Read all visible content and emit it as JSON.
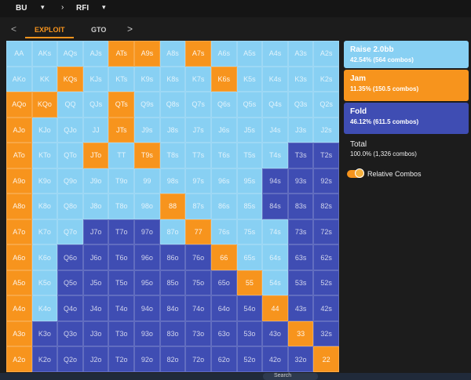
{
  "nav": {
    "position": "BU",
    "spot": "RFI"
  },
  "tabs": {
    "prev": "<",
    "active": "EXPLOIT",
    "other": "GTO",
    "next": ">"
  },
  "grid": {
    "rows": [
      [
        "AA",
        "AKs",
        "AQs",
        "AJs",
        "ATs",
        "A9s",
        "A8s",
        "A7s",
        "A6s",
        "A5s",
        "A4s",
        "A3s",
        "A2s"
      ],
      [
        "AKo",
        "KK",
        "KQs",
        "KJs",
        "KTs",
        "K9s",
        "K8s",
        "K7s",
        "K6s",
        "K5s",
        "K4s",
        "K3s",
        "K2s"
      ],
      [
        "AQo",
        "KQo",
        "QQ",
        "QJs",
        "QTs",
        "Q9s",
        "Q8s",
        "Q7s",
        "Q6s",
        "Q5s",
        "Q4s",
        "Q3s",
        "Q2s"
      ],
      [
        "AJo",
        "KJo",
        "QJo",
        "JJ",
        "JTs",
        "J9s",
        "J8s",
        "J7s",
        "J6s",
        "J5s",
        "J4s",
        "J3s",
        "J2s"
      ],
      [
        "ATo",
        "KTo",
        "QTo",
        "JTo",
        "TT",
        "T9s",
        "T8s",
        "T7s",
        "T6s",
        "T5s",
        "T4s",
        "T3s",
        "T2s"
      ],
      [
        "A9o",
        "K9o",
        "Q9o",
        "J9o",
        "T9o",
        "99",
        "98s",
        "97s",
        "96s",
        "95s",
        "94s",
        "93s",
        "92s"
      ],
      [
        "A8o",
        "K8o",
        "Q8o",
        "J8o",
        "T8o",
        "98o",
        "88",
        "87s",
        "86s",
        "85s",
        "84s",
        "83s",
        "82s"
      ],
      [
        "A7o",
        "K7o",
        "Q7o",
        "J7o",
        "T7o",
        "97o",
        "87o",
        "77",
        "76s",
        "75s",
        "74s",
        "73s",
        "72s"
      ],
      [
        "A6o",
        "K6o",
        "Q6o",
        "J6o",
        "T6o",
        "96o",
        "86o",
        "76o",
        "66",
        "65s",
        "64s",
        "63s",
        "62s"
      ],
      [
        "A5o",
        "K5o",
        "Q5o",
        "J5o",
        "T5o",
        "95o",
        "85o",
        "75o",
        "65o",
        "55",
        "54s",
        "53s",
        "52s"
      ],
      [
        "A4o",
        "K4o",
        "Q4o",
        "J4o",
        "T4o",
        "94o",
        "84o",
        "74o",
        "64o",
        "54o",
        "44",
        "43s",
        "42s"
      ],
      [
        "A3o",
        "K3o",
        "Q3o",
        "J3o",
        "T3o",
        "93o",
        "83o",
        "73o",
        "63o",
        "53o",
        "43o",
        "33",
        "32s"
      ],
      [
        "A2o",
        "K2o",
        "Q2o",
        "J2o",
        "T2o",
        "92o",
        "82o",
        "72o",
        "62o",
        "52o",
        "42o",
        "32o",
        "22"
      ]
    ],
    "actions": [
      "RRRRJJRJRRRRR",
      "RRJRRRRRJRRRR",
      "JJRRJRRRRRRRR",
      "JRRRJRRRRRRRR",
      "JRRJRJRRRRRFF",
      "JRRRRRRRRRFFF",
      "JRRRRRJRRRFFF",
      "JRRFFFRJRRRFF",
      "JRFFFFFFJRRFF",
      "JRFFFFFFFJRFF",
      "JRFFFFFFFFJFF",
      "JFFFFFFFFFFJF",
      "JFFFFFFFFFFFJ"
    ],
    "action_colors": {
      "R": "#88d0f3",
      "J": "#f7941d",
      "F": "#3f4db3"
    }
  },
  "legend": [
    {
      "title": "Raise 2.0bb",
      "detail": "42.54% (564 combos)",
      "color": "#88d0f3"
    },
    {
      "title": "Jam",
      "detail": "11.35% (150.5 combos)",
      "color": "#f7941d"
    },
    {
      "title": "Fold",
      "detail": "46.12% (611.5 combos)",
      "color": "#3f4db3"
    }
  ],
  "total": {
    "title": "Total",
    "detail": "100.0% (1,326 combos)"
  },
  "toggle": {
    "label": "Relative Combos"
  },
  "taskbar": {
    "search": "Search"
  }
}
